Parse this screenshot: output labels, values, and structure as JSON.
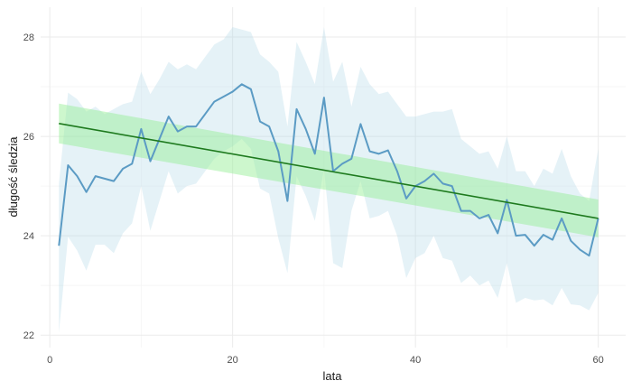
{
  "chart_data": {
    "type": "line",
    "title": "",
    "xlabel": "lata",
    "ylabel": "długość śledzia",
    "xlim": [
      -1,
      63
    ],
    "ylim": [
      21.75,
      28.6
    ],
    "x_ticks": [
      0,
      20,
      40,
      60
    ],
    "y_ticks": [
      22,
      24,
      26,
      28
    ],
    "x_tick_labels": [
      "0",
      "20",
      "40",
      "60"
    ],
    "y_tick_labels": [
      "22",
      "24",
      "26",
      "28"
    ],
    "grid": true,
    "legend": "none",
    "colors": {
      "series_line": "#5b9bc4",
      "series_band": "#add8e6",
      "trend_line": "#1e7a1e",
      "trend_band": "#90ee90",
      "grid_major": "#ebebeb",
      "grid_minor": "#f5f5f5"
    },
    "series": [
      {
        "x": [
          1,
          2,
          3,
          4,
          5,
          6,
          7,
          8,
          9,
          10,
          11,
          12,
          13,
          14,
          15,
          16,
          17,
          18,
          19,
          20,
          21,
          22,
          23,
          24,
          25,
          26,
          27,
          28,
          29,
          30,
          31,
          32,
          33,
          34,
          35,
          36,
          37,
          38,
          39,
          40,
          41,
          42,
          43,
          44,
          45,
          46,
          47,
          48,
          49,
          50,
          51,
          52,
          53,
          54,
          55,
          56,
          57,
          58,
          59,
          60
        ],
        "values": [
          23.8,
          25.42,
          25.2,
          24.88,
          25.2,
          25.15,
          25.1,
          25.35,
          25.45,
          26.15,
          25.5,
          25.95,
          26.4,
          26.1,
          26.2,
          26.2,
          26.45,
          26.7,
          26.8,
          26.9,
          27.05,
          26.95,
          26.3,
          26.2,
          25.7,
          24.7,
          26.55,
          26.15,
          25.65,
          26.78,
          25.3,
          25.45,
          25.55,
          26.25,
          25.7,
          25.65,
          25.72,
          25.3,
          24.75,
          25.0,
          25.1,
          25.25,
          25.05,
          25.0,
          24.5,
          24.5,
          24.35,
          24.42,
          24.05,
          24.72,
          24.0,
          24.02,
          23.8,
          24.02,
          23.92,
          24.35,
          23.9,
          23.72,
          23.6,
          24.35
        ],
        "lower": [
          22.05,
          23.98,
          23.7,
          23.3,
          23.82,
          23.82,
          23.65,
          24.05,
          24.25,
          25.0,
          24.1,
          24.7,
          25.3,
          24.85,
          25.0,
          25.05,
          25.3,
          25.55,
          25.7,
          25.8,
          25.95,
          25.75,
          24.95,
          24.85,
          23.95,
          23.25,
          25.2,
          24.8,
          24.3,
          25.35,
          23.45,
          23.35,
          24.5,
          25.1,
          24.35,
          24.4,
          24.5,
          24.0,
          23.15,
          23.55,
          23.65,
          24.0,
          23.55,
          23.5,
          23.05,
          23.2,
          23.0,
          23.1,
          22.75,
          23.45,
          22.65,
          22.75,
          22.7,
          22.72,
          22.6,
          22.95,
          22.62,
          22.6,
          22.5,
          22.85
        ],
        "upper": [
          25.05,
          26.88,
          26.75,
          26.5,
          26.6,
          26.45,
          26.55,
          26.65,
          26.7,
          27.3,
          26.85,
          27.15,
          27.5,
          27.35,
          27.45,
          27.35,
          27.6,
          27.85,
          27.95,
          28.2,
          28.15,
          28.1,
          27.65,
          27.5,
          27.3,
          26.2,
          27.9,
          27.5,
          27.05,
          28.2,
          27.1,
          27.5,
          26.6,
          27.4,
          27.05,
          26.85,
          26.9,
          26.65,
          26.4,
          26.4,
          26.45,
          26.5,
          26.5,
          26.55,
          25.95,
          25.8,
          25.65,
          25.7,
          25.35,
          26.0,
          25.3,
          25.3,
          25.0,
          25.35,
          25.25,
          25.75,
          25.2,
          24.85,
          24.7,
          25.75
        ]
      }
    ],
    "trend": {
      "x": [
        1,
        60
      ],
      "values": [
        26.26,
        24.35
      ],
      "lower": [
        25.86,
        23.97
      ],
      "upper": [
        26.66,
        24.73
      ]
    }
  }
}
